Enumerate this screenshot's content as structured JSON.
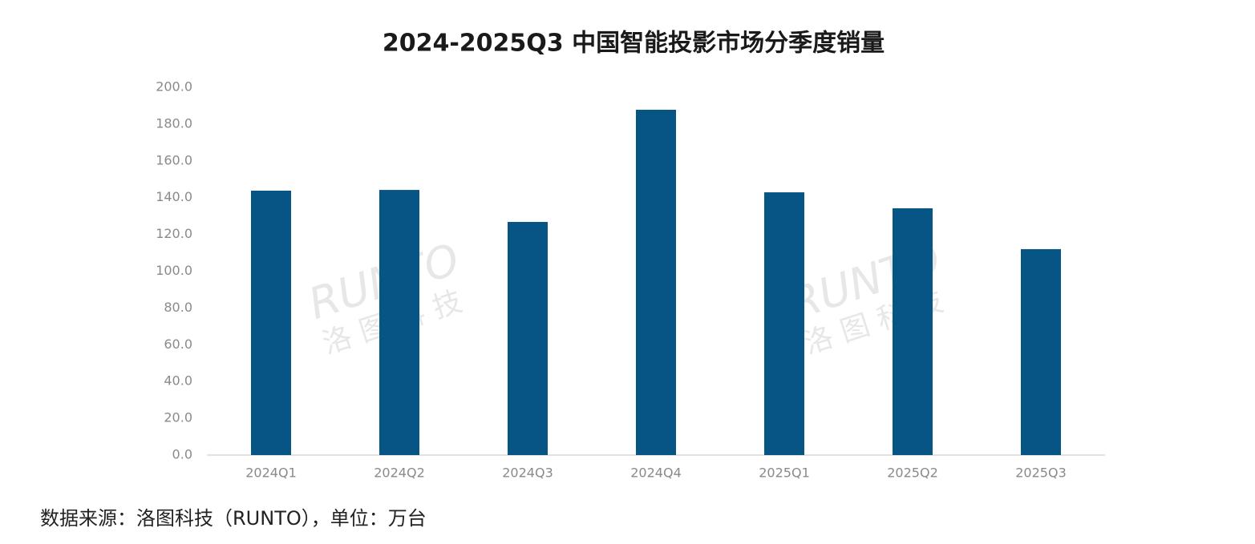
{
  "chart_data": {
    "type": "bar",
    "title": "2024-2025Q3 中国智能投影市场分季度销量",
    "categories": [
      "2024Q1",
      "2024Q2",
      "2024Q3",
      "2024Q4",
      "2025Q1",
      "2025Q2",
      "2025Q3"
    ],
    "values": [
      143.8,
      144.2,
      126.8,
      187.8,
      142.9,
      134.2,
      112.0
    ],
    "color": "#065585",
    "ylim": [
      0,
      200
    ],
    "yticks": [
      {
        "value": 0,
        "label": "0.0"
      },
      {
        "value": 20,
        "label": "20.0"
      },
      {
        "value": 40,
        "label": "40.0"
      },
      {
        "value": 60,
        "label": "60.0"
      },
      {
        "value": 80,
        "label": "80.0"
      },
      {
        "value": 100,
        "label": "100.0"
      },
      {
        "value": 120,
        "label": "120.0"
      },
      {
        "value": 140,
        "label": "140.0"
      },
      {
        "value": 160,
        "label": "160.0"
      },
      {
        "value": 180,
        "label": "180.0"
      },
      {
        "value": 200,
        "label": "200.0"
      }
    ],
    "grid": false,
    "watermark": [
      "RUNTO",
      "洛图科技"
    ],
    "source": "数据来源：洛图科技（RUNTO），单位：万台"
  }
}
